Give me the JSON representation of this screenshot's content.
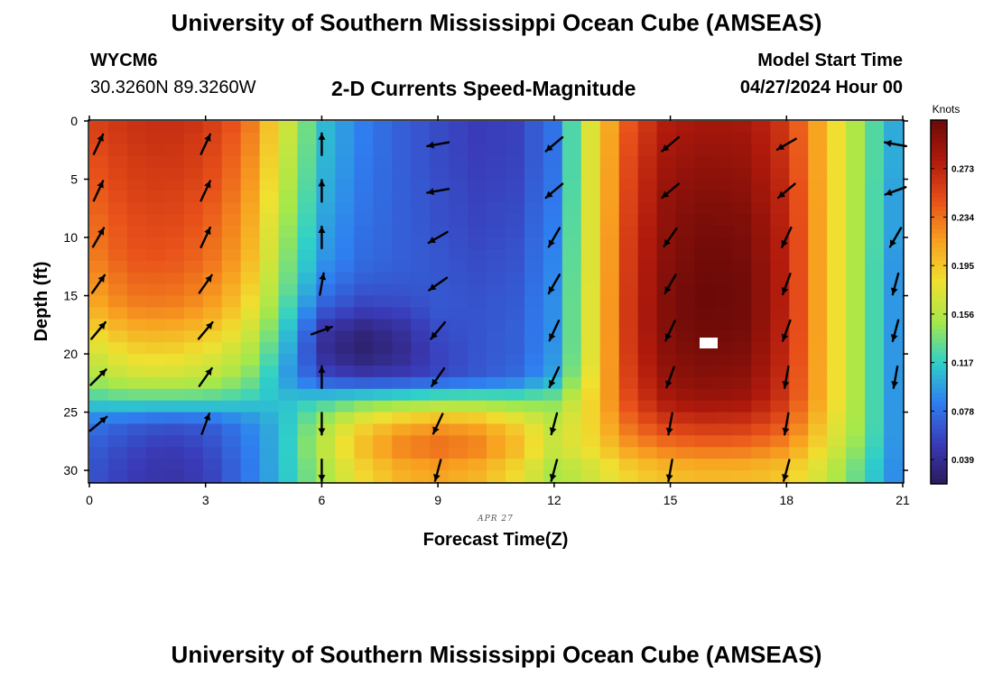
{
  "header": {
    "title": "University of Southern Mississippi Ocean Cube (AMSEAS)",
    "station_id": "WYCM6",
    "coords": "30.3260N  89.3260W",
    "subtitle": "2-D Currents Speed-Magnitude",
    "model_start_label": "Model Start Time",
    "model_start_value": "04/27/2024 Hour 00"
  },
  "footer": {
    "title": "University of Southern Mississippi Ocean Cube (AMSEAS)"
  },
  "colors": {
    "arrow": "#000000",
    "colormap": [
      "#2c1a5c",
      "#3a3bb8",
      "#2f7ef0",
      "#2fd0c8",
      "#a6e84a",
      "#f0e030",
      "#f8a020",
      "#e8501a",
      "#b01a0c",
      "#6b0a08"
    ]
  },
  "chart_data": {
    "type": "heatmap",
    "title": "2-D Currents Speed-Magnitude",
    "xlabel": "Forecast Time(Z)",
    "ylabel": "Depth (ft)",
    "date_label": "APR 27",
    "x_range": [
      0,
      21
    ],
    "y_range": [
      0,
      31
    ],
    "x_ticks": [
      0,
      3,
      6,
      9,
      12,
      15,
      18,
      21
    ],
    "y_ticks": [
      0,
      5,
      10,
      15,
      20,
      25,
      30
    ],
    "colorbar": {
      "units": "Knots",
      "min": 0.0195,
      "max": 0.312,
      "ticks": [
        "0.039",
        "0.078",
        "0.117",
        "0.156",
        "0.195",
        "0.234",
        "0.273"
      ]
    },
    "speed_field_knots": {
      "times": [
        0,
        1,
        2,
        3,
        4,
        5,
        6,
        7,
        8,
        9,
        10,
        11,
        12,
        13,
        14,
        15,
        16,
        17,
        18,
        19,
        20,
        21
      ],
      "depths": [
        0,
        2,
        4,
        6,
        8,
        10,
        12,
        14,
        16,
        18,
        20,
        22,
        24,
        26,
        28,
        30
      ],
      "values": [
        [
          0.255,
          0.265,
          0.268,
          0.262,
          0.24,
          0.175,
          0.11,
          0.085,
          0.07,
          0.06,
          0.052,
          0.055,
          0.08,
          0.18,
          0.25,
          0.28,
          0.285,
          0.283,
          0.26,
          0.2,
          0.14,
          0.09
        ],
        [
          0.25,
          0.262,
          0.265,
          0.258,
          0.235,
          0.17,
          0.11,
          0.085,
          0.07,
          0.06,
          0.052,
          0.055,
          0.08,
          0.18,
          0.255,
          0.285,
          0.29,
          0.288,
          0.262,
          0.2,
          0.14,
          0.09
        ],
        [
          0.245,
          0.258,
          0.262,
          0.255,
          0.23,
          0.165,
          0.108,
          0.083,
          0.07,
          0.06,
          0.053,
          0.056,
          0.08,
          0.18,
          0.258,
          0.29,
          0.295,
          0.292,
          0.265,
          0.2,
          0.14,
          0.09
        ],
        [
          0.24,
          0.255,
          0.258,
          0.25,
          0.225,
          0.16,
          0.105,
          0.082,
          0.07,
          0.062,
          0.055,
          0.058,
          0.082,
          0.18,
          0.26,
          0.295,
          0.3,
          0.296,
          0.268,
          0.2,
          0.14,
          0.085
        ],
        [
          0.235,
          0.25,
          0.255,
          0.245,
          0.22,
          0.155,
          0.102,
          0.08,
          0.07,
          0.062,
          0.056,
          0.06,
          0.084,
          0.18,
          0.262,
          0.298,
          0.304,
          0.3,
          0.27,
          0.2,
          0.14,
          0.085
        ],
        [
          0.23,
          0.248,
          0.25,
          0.24,
          0.215,
          0.15,
          0.098,
          0.078,
          0.07,
          0.064,
          0.058,
          0.062,
          0.086,
          0.18,
          0.265,
          0.3,
          0.308,
          0.304,
          0.272,
          0.2,
          0.14,
          0.085
        ],
        [
          0.225,
          0.244,
          0.246,
          0.236,
          0.21,
          0.145,
          0.095,
          0.076,
          0.07,
          0.065,
          0.06,
          0.064,
          0.088,
          0.18,
          0.266,
          0.302,
          0.31,
          0.306,
          0.272,
          0.2,
          0.14,
          0.08
        ],
        [
          0.215,
          0.236,
          0.238,
          0.228,
          0.2,
          0.14,
          0.085,
          0.068,
          0.066,
          0.066,
          0.062,
          0.066,
          0.09,
          0.18,
          0.267,
          0.304,
          0.312,
          0.308,
          0.272,
          0.2,
          0.14,
          0.08
        ],
        [
          0.205,
          0.226,
          0.228,
          0.218,
          0.19,
          0.13,
          0.07,
          0.055,
          0.058,
          0.066,
          0.064,
          0.068,
          0.092,
          0.18,
          0.268,
          0.305,
          0.312,
          0.308,
          0.272,
          0.2,
          0.14,
          0.08
        ],
        [
          0.185,
          0.205,
          0.208,
          0.198,
          0.175,
          0.12,
          0.045,
          0.03,
          0.04,
          0.06,
          0.064,
          0.07,
          0.092,
          0.18,
          0.268,
          0.304,
          0.31,
          0.306,
          0.27,
          0.2,
          0.14,
          0.08
        ],
        [
          0.165,
          0.185,
          0.188,
          0.178,
          0.16,
          0.11,
          0.04,
          0.025,
          0.035,
          0.055,
          0.064,
          0.07,
          0.094,
          0.18,
          0.266,
          0.3,
          0.305,
          0.302,
          0.268,
          0.2,
          0.14,
          0.08
        ],
        [
          0.15,
          0.165,
          0.168,
          0.16,
          0.145,
          0.1,
          0.06,
          0.05,
          0.052,
          0.058,
          0.066,
          0.075,
          0.1,
          0.185,
          0.262,
          0.295,
          0.3,
          0.296,
          0.265,
          0.2,
          0.14,
          0.08
        ],
        [
          0.12,
          0.125,
          0.125,
          0.125,
          0.118,
          0.11,
          0.12,
          0.13,
          0.135,
          0.14,
          0.14,
          0.135,
          0.14,
          0.19,
          0.255,
          0.285,
          0.29,
          0.286,
          0.26,
          0.2,
          0.14,
          0.08
        ],
        [
          0.08,
          0.07,
          0.065,
          0.068,
          0.085,
          0.11,
          0.15,
          0.185,
          0.205,
          0.215,
          0.21,
          0.19,
          0.16,
          0.19,
          0.24,
          0.26,
          0.265,
          0.262,
          0.245,
          0.19,
          0.14,
          0.08
        ],
        [
          0.07,
          0.058,
          0.05,
          0.058,
          0.08,
          0.11,
          0.16,
          0.2,
          0.228,
          0.238,
          0.23,
          0.205,
          0.165,
          0.185,
          0.218,
          0.232,
          0.236,
          0.234,
          0.222,
          0.18,
          0.135,
          0.08
        ],
        [
          0.065,
          0.052,
          0.045,
          0.052,
          0.078,
          0.11,
          0.15,
          0.185,
          0.205,
          0.212,
          0.205,
          0.185,
          0.15,
          0.168,
          0.19,
          0.2,
          0.203,
          0.202,
          0.195,
          0.165,
          0.125,
          0.08
        ]
      ]
    },
    "vectors": {
      "times": [
        0,
        3,
        6,
        9,
        12,
        15,
        18,
        21
      ],
      "depths": [
        2,
        6,
        10,
        14,
        18,
        22,
        26,
        30
      ],
      "directions_deg": [
        [
          25,
          25,
          0,
          260,
          230,
          230,
          240,
          280
        ],
        [
          25,
          25,
          0,
          260,
          230,
          230,
          230,
          250
        ],
        [
          30,
          25,
          0,
          240,
          210,
          215,
          205,
          210
        ],
        [
          35,
          35,
          10,
          235,
          210,
          210,
          200,
          195
        ],
        [
          40,
          40,
          70,
          220,
          205,
          205,
          200,
          195
        ],
        [
          45,
          35,
          0,
          215,
          205,
          200,
          190,
          190
        ],
        [
          50,
          20,
          180,
          205,
          195,
          190,
          190,
          null
        ],
        [
          null,
          null,
          180,
          195,
          195,
          190,
          195,
          null
        ]
      ]
    }
  }
}
